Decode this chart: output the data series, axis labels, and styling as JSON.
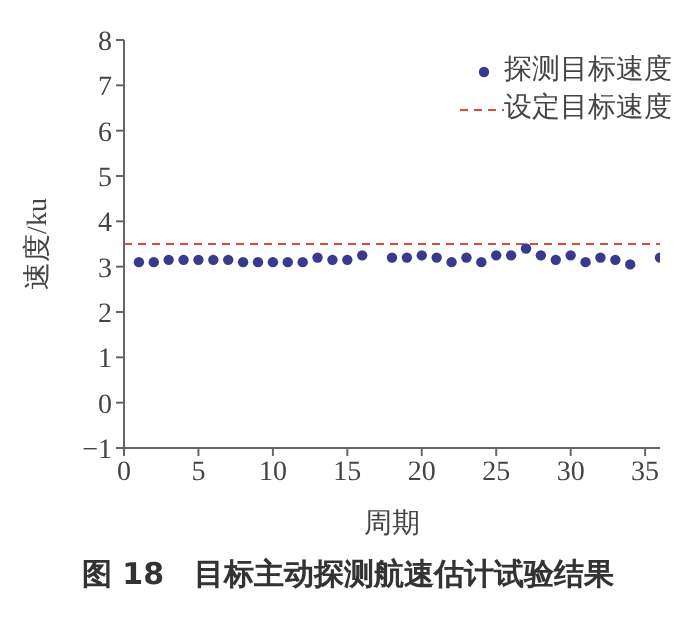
{
  "chart_data": {
    "type": "scatter",
    "xlabel": "周期",
    "ylabel": "速度/ku",
    "x": [
      1,
      2,
      3,
      4,
      5,
      6,
      7,
      8,
      9,
      10,
      11,
      12,
      13,
      14,
      15,
      16,
      18,
      19,
      20,
      21,
      22,
      23,
      24,
      25,
      26,
      27,
      28,
      29,
      30,
      31,
      32,
      33,
      34,
      36
    ],
    "series": [
      {
        "name": "探测目标速度",
        "color": "#3a3a8c",
        "values": [
          3.1,
          3.1,
          3.15,
          3.15,
          3.15,
          3.15,
          3.15,
          3.1,
          3.1,
          3.1,
          3.1,
          3.1,
          3.2,
          3.15,
          3.15,
          3.25,
          3.2,
          3.2,
          3.25,
          3.2,
          3.1,
          3.2,
          3.1,
          3.25,
          3.25,
          3.4,
          3.25,
          3.15,
          3.25,
          3.1,
          3.2,
          3.15,
          3.05,
          3.2
        ]
      }
    ],
    "ref_lines": [
      {
        "axis": "y",
        "value": 3.5,
        "label": "设定目标速度",
        "color": "#e04a3a",
        "line_style": "dashed"
      }
    ],
    "xlim": [
      0,
      36
    ],
    "xticks": [
      0,
      5,
      10,
      15,
      20,
      25,
      30,
      35
    ],
    "ylim": [
      -1,
      8
    ],
    "yticks": [
      {
        "value": -1,
        "label": "−1"
      },
      0,
      1,
      2,
      3,
      4,
      5,
      6,
      7,
      8
    ],
    "marker": "circle",
    "grid": false,
    "legend": "top right",
    "annotations": [
      "图 18　目标主动探测航速估计试验结果"
    ]
  }
}
